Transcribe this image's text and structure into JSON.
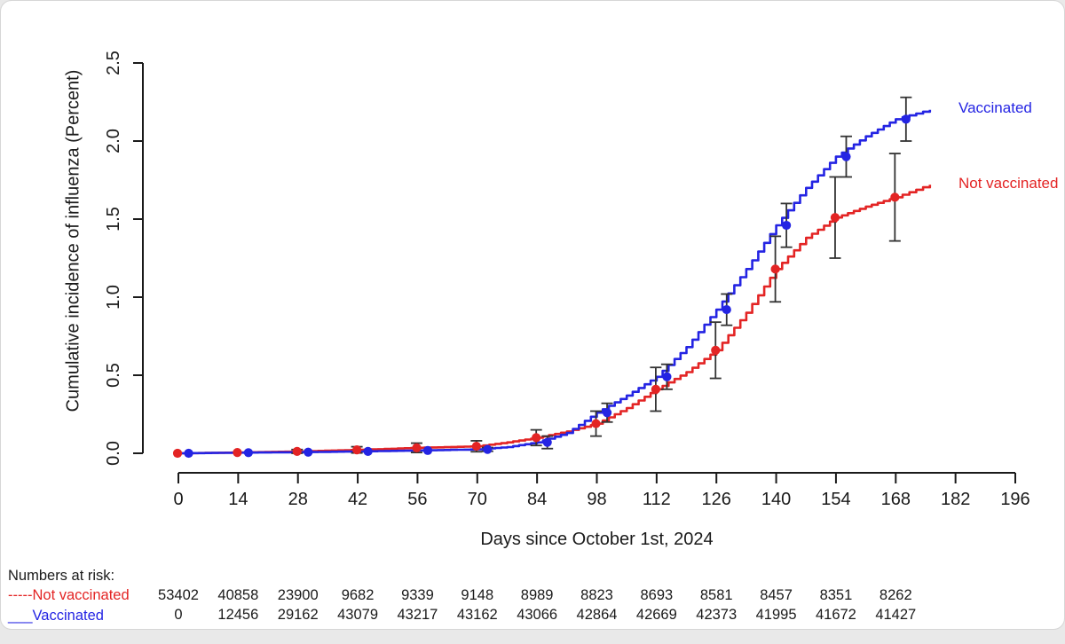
{
  "chart_data": {
    "type": "line",
    "title": "",
    "xlabel": "Days since October 1st, 2024",
    "ylabel": "Cumulative incidence of influenza (Percent)",
    "xlim": [
      0,
      196
    ],
    "ylim": [
      0,
      2.5
    ],
    "x_ticks": [
      0,
      14,
      28,
      42,
      56,
      70,
      84,
      98,
      112,
      126,
      140,
      154,
      168,
      182,
      196
    ],
    "y_ticks": [
      0.0,
      0.5,
      1.0,
      1.5,
      2.0,
      2.5
    ],
    "y_tick_labels": [
      "0.0",
      "0.5",
      "1.0",
      "1.5",
      "2.0",
      "2.5"
    ],
    "grid": false,
    "legend_position": "right",
    "axis_color": "#1a1a1a",
    "error_bar_color": "#333333",
    "series": [
      {
        "name": "Not vaccinated",
        "color": "#e32424",
        "style": "step",
        "anchors": [
          [
            0,
            0
          ],
          [
            14,
            0.005
          ],
          [
            28,
            0.012
          ],
          [
            42,
            0.022
          ],
          [
            56,
            0.035
          ],
          [
            70,
            0.045
          ],
          [
            77,
            0.07
          ],
          [
            84,
            0.1
          ],
          [
            91,
            0.14
          ],
          [
            98,
            0.19
          ],
          [
            105,
            0.29
          ],
          [
            112,
            0.41
          ],
          [
            119,
            0.52
          ],
          [
            126,
            0.66
          ],
          [
            133,
            0.9
          ],
          [
            140,
            1.18
          ],
          [
            147,
            1.38
          ],
          [
            154,
            1.51
          ],
          [
            161,
            1.58
          ],
          [
            168,
            1.64
          ],
          [
            176,
            1.72
          ]
        ],
        "marker_days": [
          0,
          14,
          28,
          42,
          56,
          70,
          84,
          98,
          112,
          126,
          140,
          154,
          168
        ],
        "marker_values": [
          0,
          0.005,
          0.012,
          0.022,
          0.035,
          0.045,
          0.1,
          0.19,
          0.41,
          0.66,
          1.18,
          1.51,
          1.64
        ],
        "marker_errors": [
          0,
          0,
          0.012,
          0.02,
          0.03,
          0.035,
          0.05,
          0.08,
          0.14,
          0.18,
          0.21,
          0.26,
          0.28
        ],
        "marker_day_offset": -0.2
      },
      {
        "name": "Vaccinated",
        "color": "#2424e3",
        "style": "step",
        "anchors": [
          [
            0,
            0
          ],
          [
            14,
            0.004
          ],
          [
            28,
            0.007
          ],
          [
            42,
            0.012
          ],
          [
            56,
            0.018
          ],
          [
            70,
            0.025
          ],
          [
            77,
            0.04
          ],
          [
            84,
            0.07
          ],
          [
            91,
            0.13
          ],
          [
            98,
            0.26
          ],
          [
            105,
            0.37
          ],
          [
            112,
            0.49
          ],
          [
            119,
            0.68
          ],
          [
            126,
            0.92
          ],
          [
            133,
            1.18
          ],
          [
            140,
            1.46
          ],
          [
            147,
            1.7
          ],
          [
            154,
            1.9
          ],
          [
            161,
            2.03
          ],
          [
            168,
            2.14
          ],
          [
            176,
            2.2
          ]
        ],
        "marker_days": [
          0,
          14,
          28,
          42,
          56,
          70,
          84,
          98,
          112,
          126,
          140,
          154,
          168
        ],
        "marker_values": [
          0,
          0.004,
          0.007,
          0.012,
          0.018,
          0.025,
          0.07,
          0.26,
          0.49,
          0.92,
          1.46,
          1.9,
          2.14
        ],
        "marker_errors": [
          0,
          0,
          0,
          0,
          0,
          0.012,
          0.04,
          0.06,
          0.08,
          0.1,
          0.14,
          0.13,
          0.14
        ],
        "marker_day_offset": 2.4
      }
    ],
    "legend": [
      {
        "label": "Vaccinated",
        "series": "Vaccinated"
      },
      {
        "label": "Not vaccinated",
        "series": "Not vaccinated"
      }
    ]
  },
  "risk_table": {
    "title": "Numbers at risk:",
    "column_days": [
      0,
      14,
      28,
      42,
      56,
      70,
      84,
      98,
      112,
      126,
      140,
      154,
      168
    ],
    "rows": [
      {
        "label": "Not vaccinated",
        "prefix": "-----",
        "series": "Not vaccinated",
        "values": [
          53402,
          40858,
          23900,
          9682,
          9339,
          9148,
          8989,
          8823,
          8693,
          8581,
          8457,
          8351,
          8262
        ]
      },
      {
        "label": "Vaccinated",
        "prefix": "___",
        "series": "Vaccinated",
        "values": [
          0,
          12456,
          29162,
          43079,
          43217,
          43162,
          43066,
          42864,
          42669,
          42373,
          41995,
          41672,
          41427
        ]
      }
    ]
  }
}
